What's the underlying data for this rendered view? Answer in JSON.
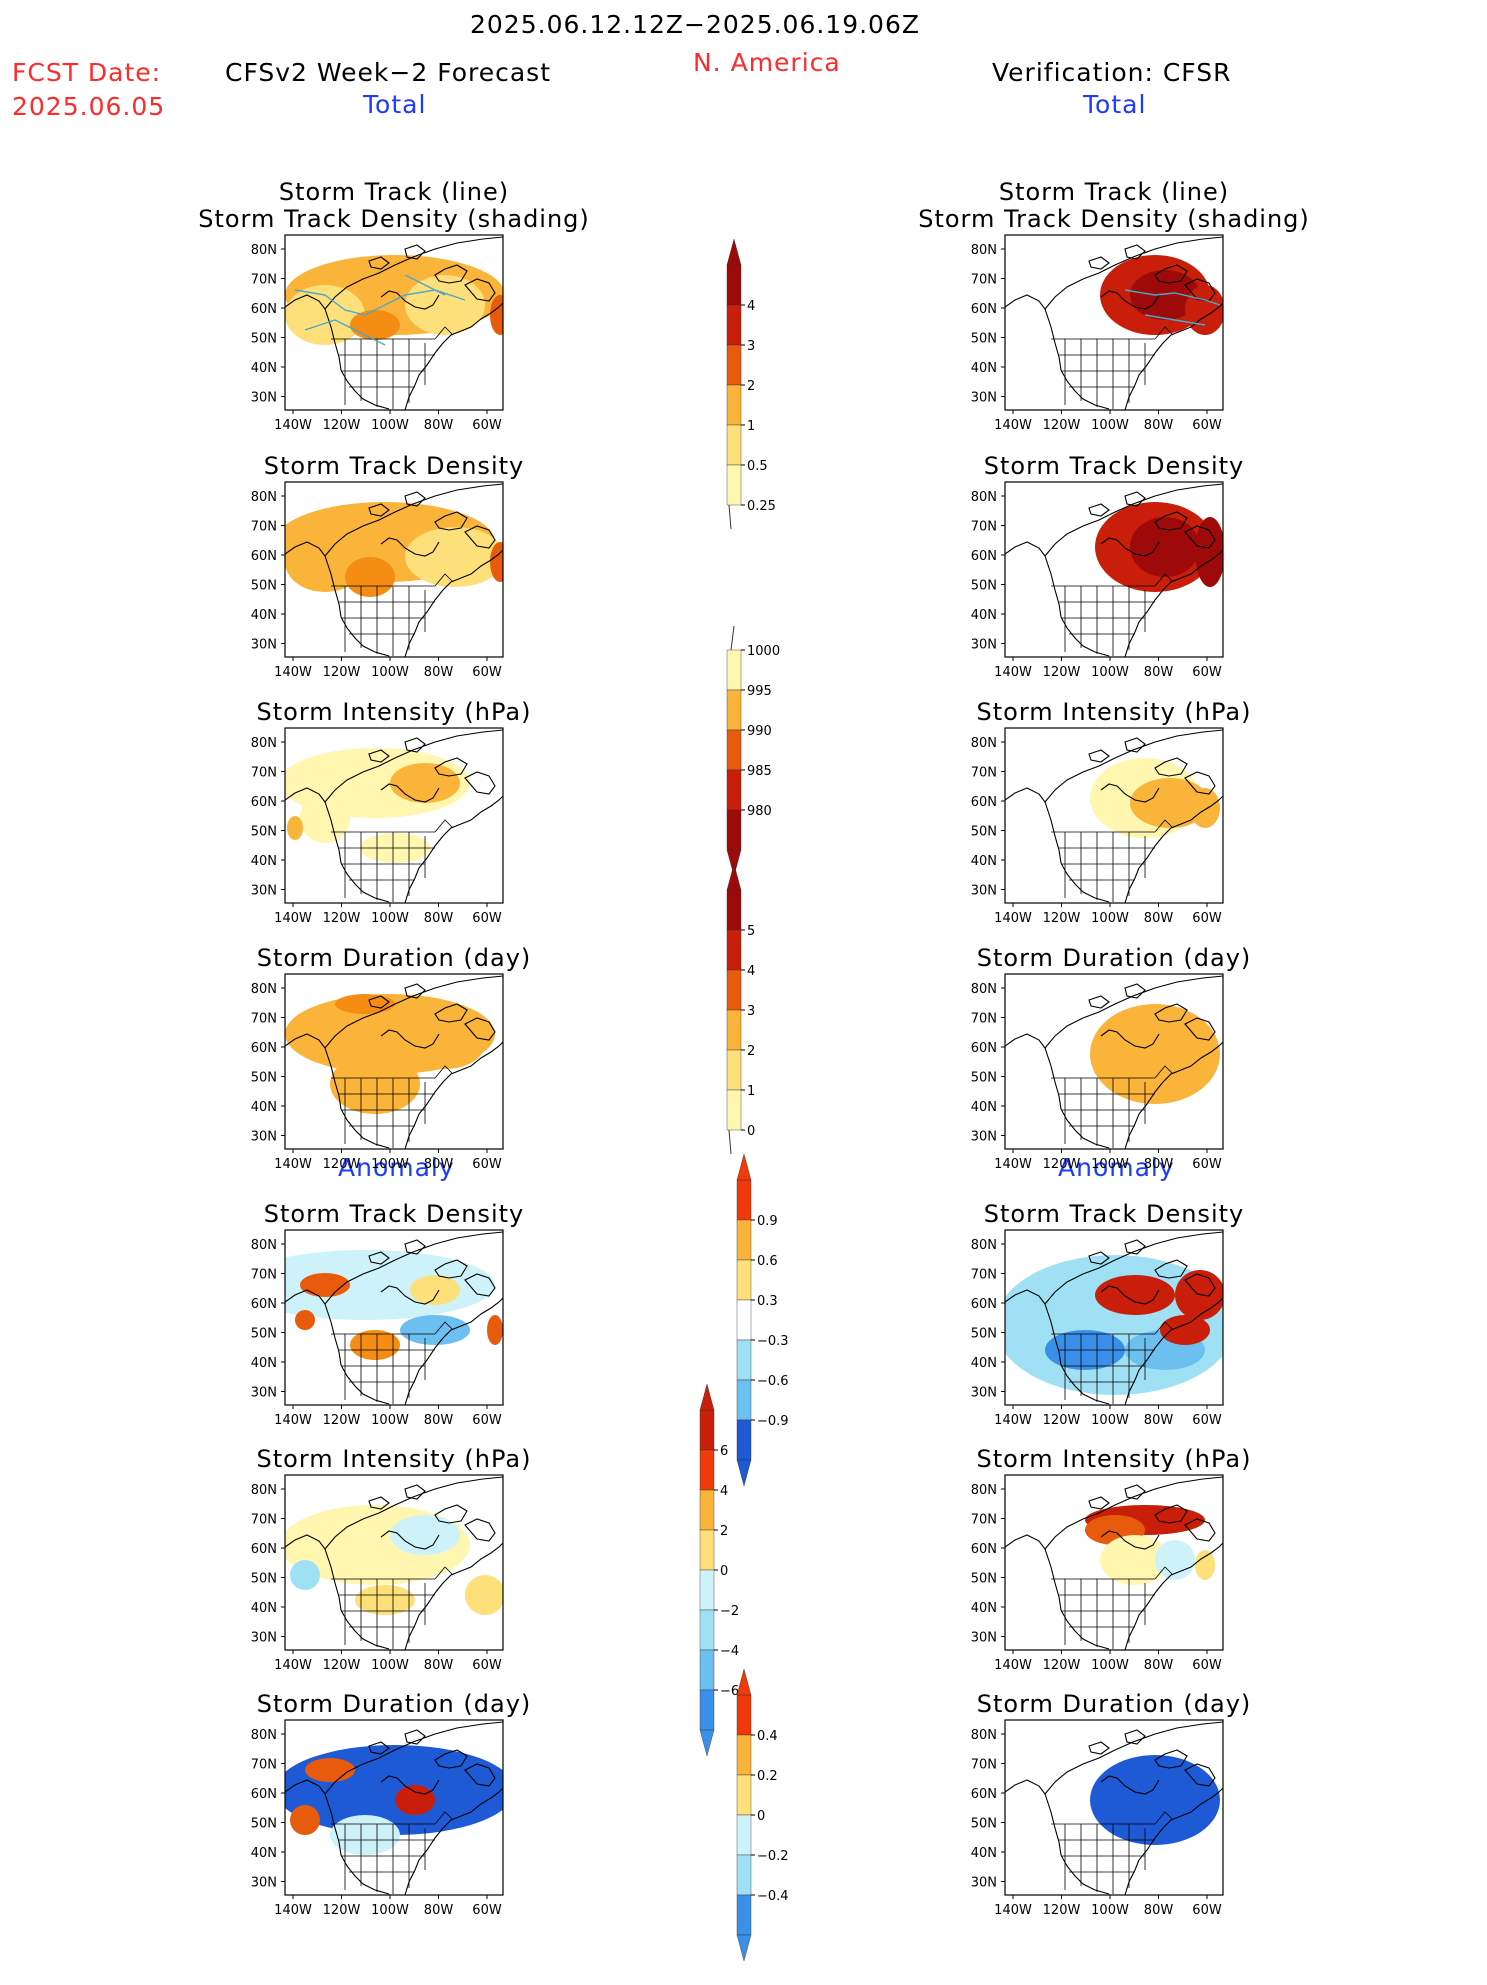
{
  "header": {
    "date_range": "2025.06.12.12Z−2025.06.19.06Z",
    "region": "N. America",
    "fcst_label": "FCST Date:",
    "fcst_date": "2025.06.05",
    "left_title": "CFSv2 Week−2 Forecast",
    "right_title": "Verification: CFSR",
    "total_label": "Total",
    "anomaly_label": "Anomaly"
  },
  "axes": {
    "lat_labels": [
      "80N",
      "70N",
      "60N",
      "50N",
      "40N",
      "30N"
    ],
    "lon_labels": [
      "140W",
      "120W",
      "100W",
      "80W",
      "60W"
    ]
  },
  "panels": {
    "titles": [
      [
        "Storm Track (line)",
        "Storm Track Density (shading)"
      ],
      [
        "Storm Track Density"
      ],
      [
        "Storm Intensity (hPa)"
      ],
      [
        "Storm Duration (day)"
      ],
      [
        "Storm Track Density"
      ],
      [
        "Storm Intensity (hPa)"
      ],
      [
        "Storm Duration (day)"
      ]
    ]
  },
  "colorbars": [
    {
      "name": "density-total",
      "labels": [
        "4",
        "3",
        "2",
        "1",
        "0.5",
        "0.25"
      ]
    },
    {
      "name": "intensity-total",
      "labels": [
        "1000",
        "995",
        "990",
        "985",
        "980"
      ]
    },
    {
      "name": "duration-total",
      "labels": [
        "5",
        "4",
        "3",
        "2",
        "1",
        "0"
      ]
    },
    {
      "name": "density-anomaly",
      "labels": [
        "0.9",
        "0.6",
        "0.3",
        "−0.3",
        "−0.6",
        "−0.9"
      ]
    },
    {
      "name": "intensity-anomaly",
      "labels": [
        "6",
        "4",
        "2",
        "0",
        "−2",
        "−4",
        "−6"
      ]
    },
    {
      "name": "duration-anomaly",
      "labels": [
        "0.4",
        "0.2",
        "0",
        "−0.2",
        "−0.4"
      ]
    }
  ],
  "colors": {
    "warm": [
      "#fff7b0",
      "#fde07a",
      "#fbb43a",
      "#f58c14",
      "#e85a0c",
      "#c81e0a",
      "#9e0a0a"
    ],
    "cool": [
      "#cdf2fa",
      "#a0e0f5",
      "#6cc0f0",
      "#3a90e8",
      "#1e5ad6"
    ],
    "track_line": "#4aa8c8"
  }
}
